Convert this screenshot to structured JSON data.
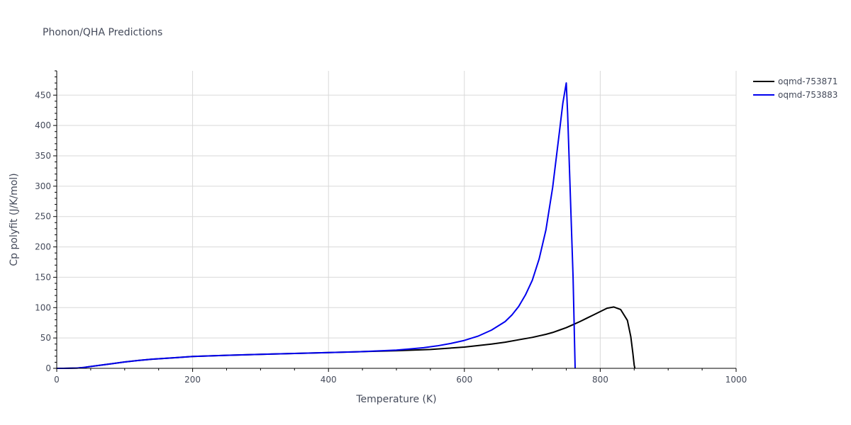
{
  "chart_data": {
    "type": "line",
    "title": "Phonon/QHA Predictions",
    "xlabel": "Temperature (K)",
    "ylabel": "Cp polyfit (J/K/mol)",
    "xlim": [
      0,
      1000
    ],
    "ylim": [
      0,
      490
    ],
    "xticks": [
      0,
      200,
      400,
      600,
      800,
      1000
    ],
    "yticks": [
      0,
      50,
      100,
      150,
      200,
      250,
      300,
      350,
      400,
      450
    ],
    "grid": true,
    "legend_position": "top-right",
    "series": [
      {
        "name": "oqmd-753871",
        "color": "#000000",
        "x": [
          0,
          10,
          30,
          40,
          60,
          80,
          100,
          120,
          140,
          160,
          180,
          200,
          250,
          300,
          350,
          400,
          450,
          500,
          550,
          600,
          620,
          640,
          660,
          680,
          700,
          720,
          730,
          740,
          750,
          760,
          770,
          780,
          790,
          800,
          810,
          820,
          830,
          840,
          845,
          848,
          850,
          851
        ],
        "y": [
          0,
          0,
          0.5,
          1.5,
          4.5,
          7.5,
          10.5,
          13,
          15,
          16.5,
          18,
          19.5,
          21.5,
          23,
          24.5,
          26,
          27.5,
          29,
          31,
          35,
          37.5,
          40,
          43,
          47,
          51,
          56,
          59,
          63,
          67,
          72,
          77,
          82.5,
          88,
          93.5,
          99,
          101,
          97,
          79,
          52,
          25,
          5,
          0
        ]
      },
      {
        "name": "oqmd-753883",
        "color": "#0000ee",
        "x": [
          0,
          10,
          30,
          40,
          60,
          80,
          100,
          120,
          140,
          160,
          180,
          200,
          250,
          300,
          350,
          400,
          450,
          500,
          520,
          540,
          560,
          580,
          600,
          620,
          640,
          660,
          670,
          680,
          690,
          700,
          710,
          720,
          730,
          740,
          745,
          750,
          752,
          760,
          763
        ],
        "y": [
          0,
          0,
          0.5,
          1.5,
          4.5,
          7.5,
          10.5,
          13,
          15,
          16.5,
          18,
          19.5,
          21.5,
          23,
          24.5,
          26,
          27.5,
          30,
          32,
          34,
          37,
          41,
          46,
          53,
          63,
          77,
          88,
          102,
          121,
          145,
          180,
          228,
          298,
          390,
          437,
          470,
          420,
          150,
          0
        ]
      }
    ]
  }
}
